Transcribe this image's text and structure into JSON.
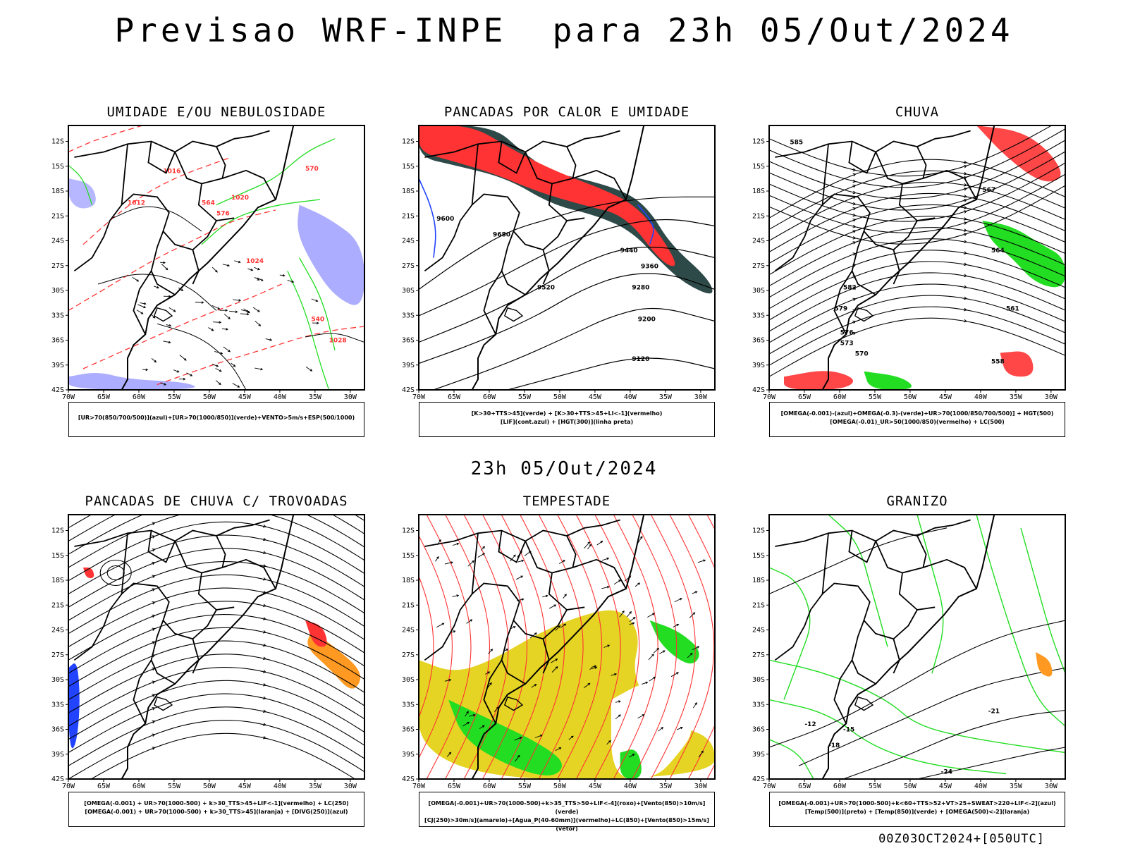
{
  "title": "Previsao WRF-INPE  para 23h 05/Out/2024",
  "subtitle": "23h 05/Out/2024",
  "run_label": "00Z03OCT2024+[050UTC]",
  "axes": {
    "lat_labels": [
      "12S",
      "15S",
      "18S",
      "21S",
      "24S",
      "27S",
      "30S",
      "33S",
      "36S",
      "39S",
      "42S"
    ],
    "lon_labels": [
      "70W",
      "65W",
      "60W",
      "55W",
      "50W",
      "45W",
      "40W",
      "35W",
      "30W"
    ]
  },
  "colors": {
    "contour": "#000000",
    "red": "#ff3333",
    "green": "#22dd22",
    "blue": "#2244ff",
    "lavender": "#9999ff",
    "teal": "#2e4a48",
    "yellow": "#e5d423",
    "orange": "#ff9922"
  },
  "panels": [
    {
      "title": "UMIDADE E/OU NEBULOSIDADE",
      "legend": [
        "[UR>70(850/700/500)](azul)+[UR>70(1000/850)](verde)+VENTO>5m/s+ESP(500/1000)"
      ],
      "labels": [
        "1012",
        "1016",
        "1020",
        "1024",
        "1028",
        "540",
        "564",
        "570",
        "576"
      ]
    },
    {
      "title": "PANCADAS POR CALOR E UMIDADE",
      "legend": [
        "[K>30+TTS>45](verde) + [K>30+TTS>45+LI<-1](vermelho)",
        "[LIF](cont.azul) + [HGT(300)](linha preta)"
      ],
      "labels": [
        "9680",
        "9600",
        "9520",
        "9440",
        "9360",
        "9280",
        "9200",
        "9120"
      ]
    },
    {
      "title": "CHUVA",
      "legend": [
        "[OMEGA(-0.001)-(azul)+OMEGA(-0.3)-(verde)+UR>70(1000/850/700/500)] + HGT(500)",
        "[OMEGA(-0.01)_UR>50(1000/850)(vermelho) + LC(500)"
      ],
      "labels": [
        "585",
        "582",
        "579",
        "576",
        "573",
        "570",
        "567",
        "564",
        "561",
        "558"
      ]
    },
    {
      "title": "PANCADAS DE CHUVA C/ TROVOADAS",
      "legend": [
        "[OMEGA(-0.001) + UR>70(1000-500) + k>30_TTS>45+LIF<-1](vermelho) + LC(250)",
        "[OMEGA(-0.001) + UR>70(1000-500) + k>30_TTS>45](laranja) + [DIVG(250)](azul)"
      ],
      "labels": []
    },
    {
      "title": "TEMPESTADE",
      "legend": [
        "[OMEGA(-0.001)+UR>70(1000-500)+k>35_TTS>50+LIF<-4](roxo)+[Vento(850)>10m/s](verde)",
        "[CJ(250)>30m/s](amarelo)+[Agua_P(40-60mm)](vermelho)+LC(850)+[Vento(850)>15m/s](vetor)"
      ],
      "labels": []
    },
    {
      "title": "GRANIZO",
      "legend": [
        "[OMEGA(-0.001)+UR>70(1000-500)+k<60+TTS>52+VT>25+SWEAT>220+LIF<-2](azul)",
        "[Temp(500)](preto) + [Temp(850)](verde) + [OMEGA(500)<-2](laranja)"
      ],
      "labels": [
        "-12",
        "-15",
        "-18",
        "-21",
        "-24"
      ]
    }
  ]
}
